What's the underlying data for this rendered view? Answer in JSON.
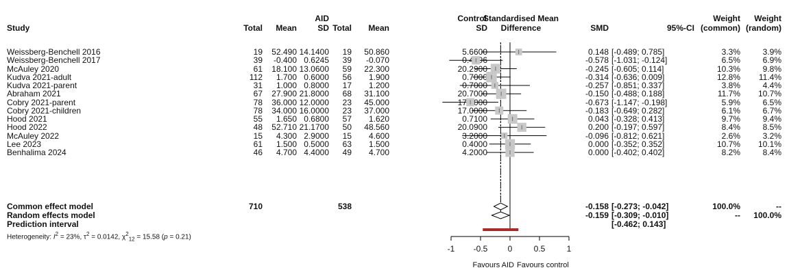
{
  "chart_data": {
    "type": "forest",
    "title": "",
    "headers": {
      "study": "Study",
      "group_aid": "AID",
      "group_control": "Control",
      "total": "Total",
      "mean": "Mean",
      "sd": "SD",
      "plot_line1": "Standardised Mean",
      "plot_line2": "Difference",
      "smd": "SMD",
      "ci": "95%-CI",
      "wc1": "Weight",
      "wc2": "(common)",
      "wr1": "Weight",
      "wr2": "(random)"
    },
    "studies": [
      {
        "study": "Weissberg-Benchell 2016",
        "aid_total": "19",
        "aid_mean": "52.490",
        "aid_sd": "14.1400",
        "ctl_total": "19",
        "ctl_mean": "50.860",
        "ctl_sd": "5.6600",
        "smd": 0.148,
        "lower": -0.489,
        "upper": 0.785,
        "smd_text": "0.148",
        "ci_text": "[-0.489; 0.785]",
        "w_common": "3.3%",
        "w_random": "3.9%",
        "w": 3.3
      },
      {
        "study": "Weissberg-Benchell 2017",
        "aid_total": "39",
        "aid_mean": "-0.400",
        "aid_sd": "0.6245",
        "ctl_total": "39",
        "ctl_mean": "-0.070",
        "ctl_sd": "0.4996",
        "smd": -0.578,
        "lower": -1.031,
        "upper": -0.124,
        "smd_text": "-0.578",
        "ci_text": "[-1.031; -0.124]",
        "w_common": "6.5%",
        "w_random": "6.9%",
        "w": 6.5
      },
      {
        "study": "McAuley 2020",
        "aid_total": "61",
        "aid_mean": "18.100",
        "aid_sd": "13.0600",
        "ctl_total": "59",
        "ctl_mean": "22.300",
        "ctl_sd": "20.2900",
        "smd": -0.245,
        "lower": -0.605,
        "upper": 0.114,
        "smd_text": "-0.245",
        "ci_text": "[-0.605; 0.114]",
        "w_common": "10.3%",
        "w_random": "9.8%",
        "w": 10.3
      },
      {
        "study": "Kudva 2021-adult",
        "aid_total": "112",
        "aid_mean": "1.700",
        "aid_sd": "0.6000",
        "ctl_total": "56",
        "ctl_mean": "1.900",
        "ctl_sd": "0.7000",
        "smd": -0.314,
        "lower": -0.636,
        "upper": 0.009,
        "smd_text": "-0.314",
        "ci_text": "[-0.636; 0.009]",
        "w_common": "12.8%",
        "w_random": "11.4%",
        "w": 12.8
      },
      {
        "study": "Kudva 2021-parent",
        "aid_total": "31",
        "aid_mean": "1.000",
        "aid_sd": "0.8000",
        "ctl_total": "17",
        "ctl_mean": "1.200",
        "ctl_sd": "0.7000",
        "smd": -0.257,
        "lower": -0.851,
        "upper": 0.337,
        "smd_text": "-0.257",
        "ci_text": "[-0.851; 0.337]",
        "w_common": "3.8%",
        "w_random": "4.4%",
        "w": 3.8
      },
      {
        "study": "Abraham 2021",
        "aid_total": "67",
        "aid_mean": "27.900",
        "aid_sd": "21.8000",
        "ctl_total": "68",
        "ctl_mean": "31.100",
        "ctl_sd": "20.7000",
        "smd": -0.15,
        "lower": -0.488,
        "upper": 0.188,
        "smd_text": "-0.150",
        "ci_text": "[-0.488; 0.188]",
        "w_common": "11.7%",
        "w_random": "10.7%",
        "w": 11.7
      },
      {
        "study": "Cobry 2021-parent",
        "aid_total": "78",
        "aid_mean": "36.000",
        "aid_sd": "12.0000",
        "ctl_total": "23",
        "ctl_mean": "45.000",
        "ctl_sd": "17.0000",
        "smd": -0.673,
        "lower": -1.147,
        "upper": -0.198,
        "smd_text": "-0.673",
        "ci_text": "[-1.147; -0.198]",
        "w_common": "5.9%",
        "w_random": "6.5%",
        "w": 5.9
      },
      {
        "study": "Cobry 2021-children",
        "aid_total": "78",
        "aid_mean": "34.000",
        "aid_sd": "16.0000",
        "ctl_total": "23",
        "ctl_mean": "37.000",
        "ctl_sd": "17.0000",
        "smd": -0.183,
        "lower": -0.649,
        "upper": 0.282,
        "smd_text": "-0.183",
        "ci_text": "[-0.649; 0.282]",
        "w_common": "6.1%",
        "w_random": "6.7%",
        "w": 6.1
      },
      {
        "study": "Hood 2021",
        "aid_total": "55",
        "aid_mean": "1.650",
        "aid_sd": "0.6800",
        "ctl_total": "57",
        "ctl_mean": "1.620",
        "ctl_sd": "0.7100",
        "smd": 0.043,
        "lower": -0.328,
        "upper": 0.413,
        "smd_text": "0.043",
        "ci_text": "[-0.328; 0.413]",
        "w_common": "9.7%",
        "w_random": "9.4%",
        "w": 9.7
      },
      {
        "study": "Hood 2022",
        "aid_total": "48",
        "aid_mean": "52.710",
        "aid_sd": "21.1700",
        "ctl_total": "50",
        "ctl_mean": "48.560",
        "ctl_sd": "20.0900",
        "smd": 0.2,
        "lower": -0.197,
        "upper": 0.597,
        "smd_text": "0.200",
        "ci_text": "[-0.197; 0.597]",
        "w_common": "8.4%",
        "w_random": "8.5%",
        "w": 8.4
      },
      {
        "study": "McAuley 2022",
        "aid_total": "15",
        "aid_mean": "4.300",
        "aid_sd": "2.9000",
        "ctl_total": "15",
        "ctl_mean": "4.600",
        "ctl_sd": "3.2000",
        "smd": -0.096,
        "lower": -0.812,
        "upper": 0.621,
        "smd_text": "-0.096",
        "ci_text": "[-0.812; 0.621]",
        "w_common": "2.6%",
        "w_random": "3.2%",
        "w": 2.6
      },
      {
        "study": "Lee 2023",
        "aid_total": "61",
        "aid_mean": "1.500",
        "aid_sd": "0.5000",
        "ctl_total": "63",
        "ctl_mean": "1.500",
        "ctl_sd": "0.4000",
        "smd": 0.0,
        "lower": -0.352,
        "upper": 0.352,
        "smd_text": "0.000",
        "ci_text": "[-0.352; 0.352]",
        "w_common": "10.7%",
        "w_random": "10.1%",
        "w": 10.7
      },
      {
        "study": "Benhalima 2024",
        "aid_total": "46",
        "aid_mean": "4.700",
        "aid_sd": "4.4000",
        "ctl_total": "49",
        "ctl_mean": "4.700",
        "ctl_sd": "4.2000",
        "smd": 0.0,
        "lower": -0.402,
        "upper": 0.402,
        "smd_text": "0.000",
        "ci_text": "[-0.402; 0.402]",
        "w_common": "8.2%",
        "w_random": "8.4%",
        "w": 8.2
      }
    ],
    "common": {
      "label": "Common effect model",
      "aid_total": "710",
      "ctl_total": "538",
      "smd": -0.158,
      "lower": -0.273,
      "upper": -0.042,
      "smd_text": "-0.158",
      "ci_text": "[-0.273; -0.042]",
      "w_common": "100.0%",
      "w_random": "--"
    },
    "random": {
      "label": "Random effects model",
      "smd": -0.159,
      "lower": -0.309,
      "upper": -0.01,
      "smd_text": "-0.159",
      "ci_text": "[-0.309; -0.010]",
      "w_common": "--",
      "w_random": "100.0%"
    },
    "prediction": {
      "label": "Prediction interval",
      "lower": -0.462,
      "upper": 0.143,
      "ci_text": "[-0.462; 0.143]"
    },
    "heterogeneity": {
      "prefix": "Heterogeneity: ",
      "i2_sym": "I",
      "i2_value": " = 23%, ",
      "tau_sym": "τ",
      "tau_value": " = 0.0142, ",
      "chi_sym": "χ",
      "chi_df": "12",
      "chi_value": " = 15.58 (",
      "p_sym": "p",
      "p_value": " = 0.21)"
    },
    "axis": {
      "xlim": [
        -1,
        1
      ],
      "ticks": [
        -1,
        -0.5,
        0,
        0.5,
        1
      ],
      "tick_labels": [
        "-1",
        "-0.5",
        "0",
        "0.5",
        "1"
      ],
      "left_label": "Favours AID",
      "right_label": "Favours control"
    },
    "colors": {
      "square": "#c8c8c8",
      "line": "#000000",
      "prediction": "#a52a2a",
      "diamond_fill": "#ffffff"
    }
  }
}
